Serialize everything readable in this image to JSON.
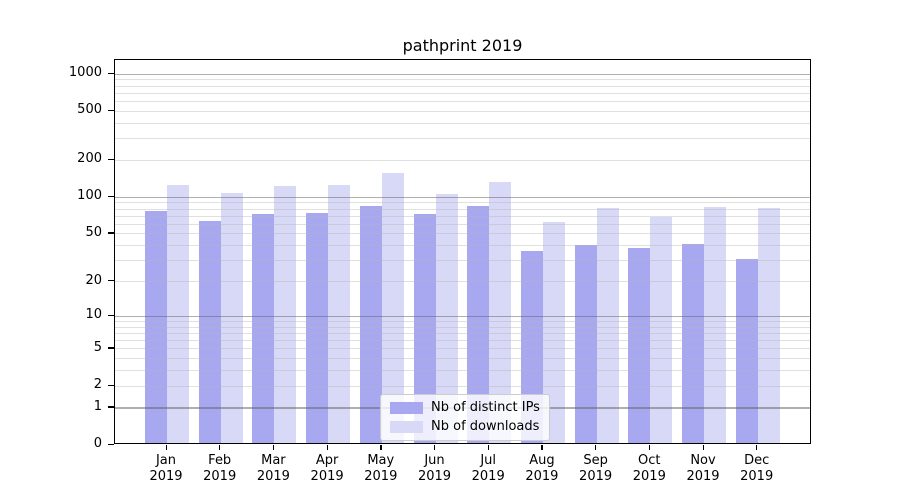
{
  "figure": {
    "background": "#ffffff",
    "frame_color": "#000000"
  },
  "chart_data": {
    "type": "bar",
    "title": "pathprint 2019",
    "xlabel": "",
    "ylabel": "",
    "scale": "log10(1+x)",
    "grid": true,
    "legend_position": "bottom-center-inside",
    "ylim": [
      0,
      1300
    ],
    "categories": [
      [
        "Jan",
        "2019"
      ],
      [
        "Feb",
        "2019"
      ],
      [
        "Mar",
        "2019"
      ],
      [
        "Apr",
        "2019"
      ],
      [
        "May",
        "2019"
      ],
      [
        "Jun",
        "2019"
      ],
      [
        "Jul",
        "2019"
      ],
      [
        "Aug",
        "2019"
      ],
      [
        "Sep",
        "2019"
      ],
      [
        "Oct",
        "2019"
      ],
      [
        "Nov",
        "2019"
      ],
      [
        "Dec",
        "2019"
      ]
    ],
    "series": [
      {
        "name": "Nb of distinct IPs",
        "color": "#a8a8f0",
        "values": [
          75,
          62,
          70,
          71,
          81,
          70,
          81,
          35,
          39,
          37,
          40,
          30
        ]
      },
      {
        "name": "Nb of downloads",
        "color": "#d8d8f7",
        "values": [
          122,
          105,
          118,
          122,
          153,
          103,
          129,
          60,
          79,
          67,
          80,
          78
        ]
      }
    ],
    "y_ticks": [
      0,
      1,
      2,
      5,
      10,
      20,
      50,
      100,
      200,
      500,
      1000
    ],
    "y_major_gridlines": [
      1,
      10,
      100,
      1000
    ],
    "y_minor_gridlines": [
      2,
      3,
      4,
      5,
      6,
      7,
      8,
      9,
      20,
      30,
      40,
      50,
      60,
      70,
      80,
      90,
      200,
      300,
      400,
      500,
      600,
      700,
      800,
      900
    ],
    "apparent_colors": {
      "major_gridline": "#b0b0b0",
      "minor_gridline": "#e1e1e1",
      "tick_and_text": "#000000"
    }
  }
}
